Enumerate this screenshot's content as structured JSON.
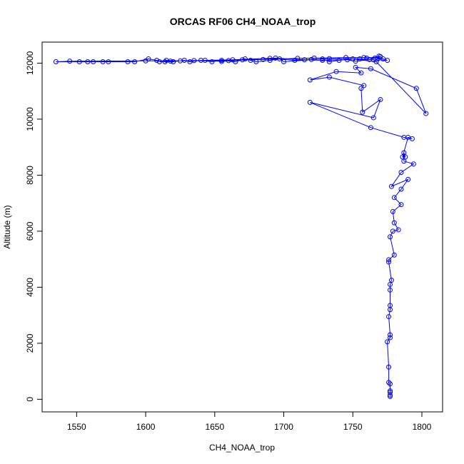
{
  "chart_data": {
    "type": "line",
    "title": "ORCAS RF06 CH4_NOAA_trop",
    "xlabel": "CH4_NOAA_trop",
    "ylabel": "Altitude (m)",
    "xlim": [
      1525,
      1815
    ],
    "ylim": [
      -450,
      12750
    ],
    "xticks": [
      1550,
      1600,
      1650,
      1700,
      1750,
      1800
    ],
    "yticks": [
      0,
      2000,
      4000,
      6000,
      8000,
      10000,
      12000
    ],
    "grid": false,
    "legend": "none",
    "marker": "open-circle",
    "series": [
      {
        "color": "#0000ff",
        "points": [
          [
            1777,
            100
          ],
          [
            1777,
            150
          ],
          [
            1777,
            250
          ],
          [
            1777,
            300
          ],
          [
            1777,
            550
          ],
          [
            1776,
            600
          ],
          [
            1776,
            1150
          ],
          [
            1775,
            2050
          ],
          [
            1777,
            2200
          ],
          [
            1777,
            2300
          ],
          [
            1776,
            2950
          ],
          [
            1777,
            3200
          ],
          [
            1777,
            3350
          ],
          [
            1777,
            3900
          ],
          [
            1777,
            4100
          ],
          [
            1778,
            4250
          ],
          [
            1776,
            4900
          ],
          [
            1776,
            4980
          ],
          [
            1780,
            5150
          ],
          [
            1777,
            5800
          ],
          [
            1779,
            6000
          ],
          [
            1783,
            6050
          ],
          [
            1780,
            6300
          ],
          [
            1779,
            6700
          ],
          [
            1785,
            6950
          ],
          [
            1780,
            7200
          ],
          [
            1785,
            7500
          ],
          [
            1790,
            7850
          ],
          [
            1778,
            7600
          ],
          [
            1785,
            8100
          ],
          [
            1794,
            8400
          ],
          [
            1787,
            8500
          ],
          [
            1787,
            8800
          ],
          [
            1788,
            8650
          ],
          [
            1786,
            8650
          ],
          [
            1790,
            9350
          ],
          [
            1793,
            9300
          ],
          [
            1787,
            9350
          ],
          [
            1763,
            9700
          ],
          [
            1719,
            10600
          ],
          [
            1765,
            10050
          ],
          [
            1770,
            10700
          ],
          [
            1757,
            10250
          ],
          [
            1756,
            11100
          ],
          [
            1758,
            11200
          ],
          [
            1733,
            11500
          ],
          [
            1719,
            11400
          ],
          [
            1738,
            11700
          ],
          [
            1756,
            11650
          ],
          [
            1752,
            11850
          ],
          [
            1763,
            11800
          ],
          [
            1796,
            11100
          ],
          [
            1803,
            10200
          ],
          [
            1767,
            12050
          ],
          [
            1750,
            12150
          ],
          [
            1740,
            12100
          ],
          [
            1733,
            12050
          ],
          [
            1728,
            12150
          ],
          [
            1700,
            12050
          ],
          [
            1697,
            12150
          ],
          [
            1690,
            12100
          ],
          [
            1680,
            12050
          ],
          [
            1676,
            12100
          ],
          [
            1672,
            12150
          ],
          [
            1665,
            12050
          ],
          [
            1655,
            12100
          ],
          [
            1648,
            12050
          ],
          [
            1640,
            12100
          ],
          [
            1632,
            12050
          ],
          [
            1628,
            12100
          ],
          [
            1620,
            12050
          ],
          [
            1614,
            12050
          ],
          [
            1608,
            12100
          ],
          [
            1602,
            12150
          ],
          [
            1592,
            12050
          ],
          [
            1587,
            12050
          ],
          [
            1573,
            12050
          ],
          [
            1569,
            12050
          ],
          [
            1562,
            12050
          ],
          [
            1558,
            12050
          ],
          [
            1552,
            12050
          ],
          [
            1535,
            12050
          ],
          [
            1545,
            12070
          ],
          [
            1600,
            12080
          ],
          [
            1660,
            12090
          ],
          [
            1710,
            12170
          ],
          [
            1722,
            12180
          ],
          [
            1745,
            12200
          ],
          [
            1758,
            12200
          ],
          [
            1766,
            12180
          ],
          [
            1769,
            12250
          ],
          [
            1768,
            12150
          ],
          [
            1772,
            12150
          ],
          [
            1775,
            12100
          ],
          [
            1765,
            12120
          ],
          [
            1755,
            12150
          ],
          [
            1733,
            12160
          ],
          [
            1720,
            12130
          ],
          [
            1708,
            12100
          ],
          [
            1690,
            12170
          ],
          [
            1685,
            12130
          ],
          [
            1670,
            12120
          ],
          [
            1655,
            12060
          ],
          [
            1643,
            12100
          ],
          [
            1625,
            12080
          ],
          [
            1615,
            12100
          ],
          [
            1610,
            12050
          ],
          [
            1618,
            12070
          ],
          [
            1635,
            12090
          ],
          [
            1663,
            12120
          ],
          [
            1694,
            12180
          ],
          [
            1715,
            12120
          ],
          [
            1728,
            12100
          ],
          [
            1746,
            12120
          ],
          [
            1752,
            12070
          ],
          [
            1762,
            12130
          ],
          [
            1770,
            12230
          ],
          [
            1760,
            12180
          ]
        ]
      }
    ]
  }
}
